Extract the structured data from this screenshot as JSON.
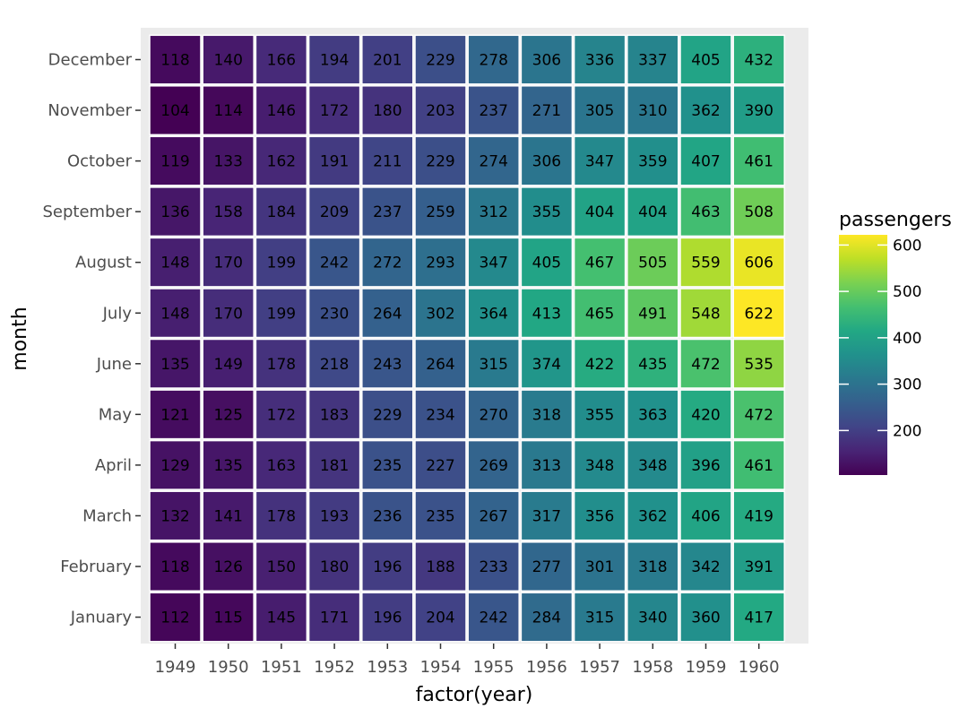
{
  "chart_data": {
    "type": "heatmap",
    "xlabel": "factor(year)",
    "ylabel": "month",
    "x_categories": [
      "1949",
      "1950",
      "1951",
      "1952",
      "1953",
      "1954",
      "1955",
      "1956",
      "1957",
      "1958",
      "1959",
      "1960"
    ],
    "y_categories": [
      "January",
      "February",
      "March",
      "April",
      "May",
      "June",
      "July",
      "August",
      "September",
      "October",
      "November",
      "December"
    ],
    "values": [
      [
        112,
        115,
        145,
        171,
        196,
        204,
        242,
        284,
        315,
        340,
        360,
        417
      ],
      [
        118,
        126,
        150,
        180,
        196,
        188,
        233,
        277,
        301,
        318,
        342,
        391
      ],
      [
        132,
        141,
        178,
        193,
        236,
        235,
        267,
        317,
        356,
        362,
        406,
        419
      ],
      [
        129,
        135,
        163,
        181,
        235,
        227,
        269,
        313,
        348,
        348,
        396,
        461
      ],
      [
        121,
        125,
        172,
        183,
        229,
        234,
        270,
        318,
        355,
        363,
        420,
        472
      ],
      [
        135,
        149,
        178,
        218,
        243,
        264,
        315,
        374,
        422,
        435,
        472,
        535
      ],
      [
        148,
        170,
        199,
        230,
        264,
        302,
        364,
        413,
        465,
        491,
        548,
        622
      ],
      [
        148,
        170,
        199,
        242,
        272,
        293,
        347,
        405,
        467,
        505,
        559,
        606
      ],
      [
        136,
        158,
        184,
        209,
        237,
        259,
        312,
        355,
        404,
        404,
        463,
        508
      ],
      [
        119,
        133,
        162,
        191,
        211,
        229,
        274,
        306,
        347,
        359,
        407,
        461
      ],
      [
        104,
        114,
        146,
        172,
        180,
        203,
        237,
        271,
        305,
        310,
        362,
        390
      ],
      [
        118,
        140,
        166,
        194,
        201,
        229,
        278,
        306,
        336,
        337,
        405,
        432
      ]
    ],
    "legend": {
      "title": "passengers",
      "ticks": [
        200,
        300,
        400,
        500,
        600
      ],
      "range": [
        104,
        622
      ],
      "palette": "viridis"
    },
    "panel_background": "#ebebeb",
    "tile_border": "#ffffff",
    "grid": false,
    "legend_position": "right"
  }
}
